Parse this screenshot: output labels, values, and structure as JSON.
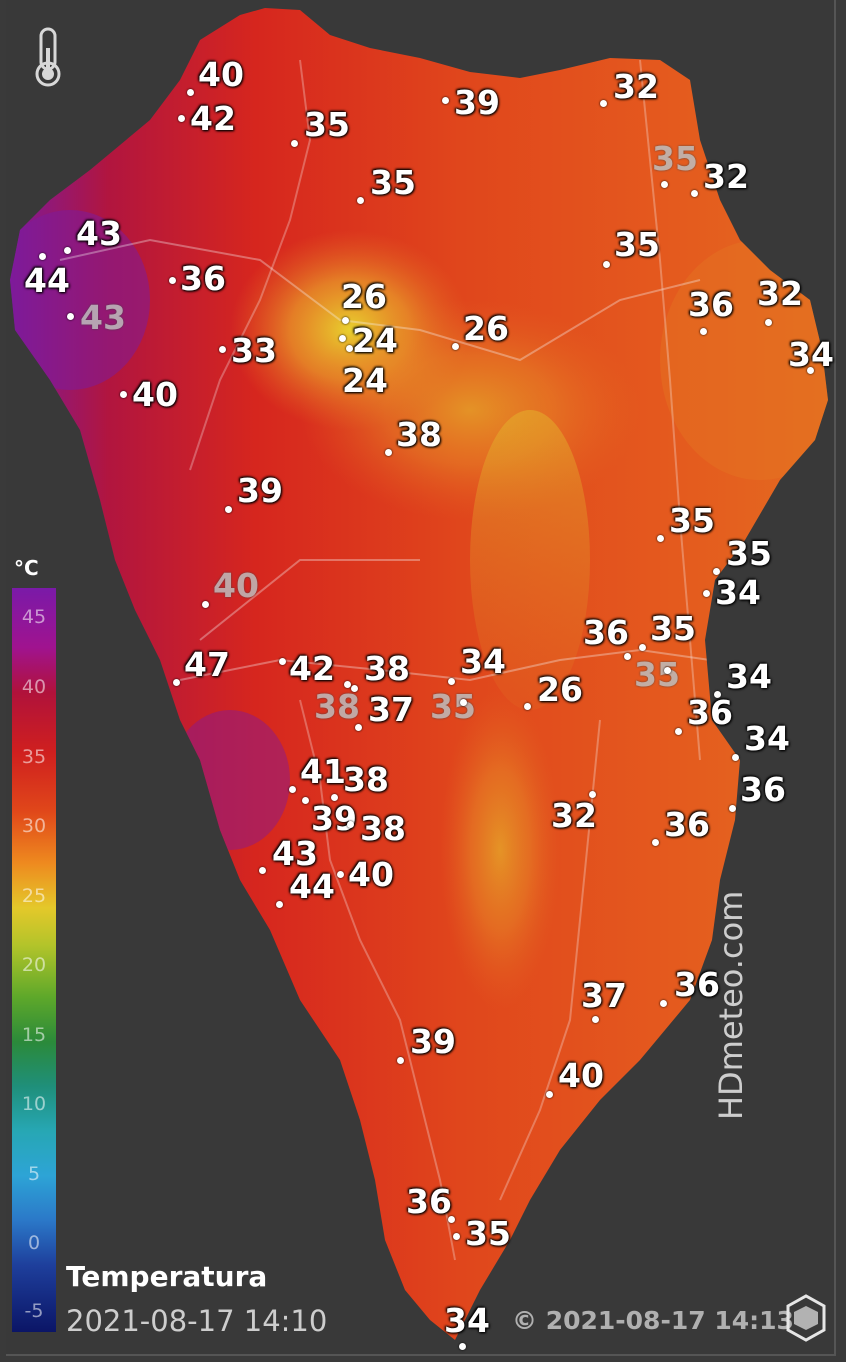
{
  "legend": {
    "unit": "°C",
    "ticks": [
      "45",
      "40",
      "35",
      "30",
      "25",
      "20",
      "15",
      "10",
      "5",
      "0",
      "-5"
    ]
  },
  "title": "Temperatura",
  "data_timestamp": "2021-08-17 14:10",
  "copyright": "© 2021-08-17 14:13",
  "brand": "HDmeteo.com",
  "colors": {
    "background": "#393939",
    "hot": "#7a1aa8",
    "warm": "#d32f1e",
    "mild": "#e2c22c"
  },
  "stations": [
    {
      "value": "40",
      "faded": false
    },
    {
      "value": "42",
      "faded": false
    },
    {
      "value": "39",
      "faded": false
    },
    {
      "value": "32",
      "faded": false
    },
    {
      "value": "35",
      "faded": false
    },
    {
      "value": "35",
      "faded": true
    },
    {
      "value": "32",
      "faded": false
    },
    {
      "value": "35",
      "faded": false
    },
    {
      "value": "43",
      "faded": false
    },
    {
      "value": "44",
      "faded": false
    },
    {
      "value": "43",
      "faded": true
    },
    {
      "value": "36",
      "faded": false
    },
    {
      "value": "35",
      "faded": false
    },
    {
      "value": "26",
      "faded": false
    },
    {
      "value": "24",
      "faded": false
    },
    {
      "value": "24",
      "faded": false
    },
    {
      "value": "26",
      "faded": false
    },
    {
      "value": "36",
      "faded": false
    },
    {
      "value": "32",
      "faded": false
    },
    {
      "value": "34",
      "faded": false
    },
    {
      "value": "33",
      "faded": false
    },
    {
      "value": "40",
      "faded": false
    },
    {
      "value": "38",
      "faded": false
    },
    {
      "value": "39",
      "faded": false
    },
    {
      "value": "35",
      "faded": false
    },
    {
      "value": "35",
      "faded": false
    },
    {
      "value": "34",
      "faded": false
    },
    {
      "value": "40",
      "faded": true
    },
    {
      "value": "36",
      "faded": false
    },
    {
      "value": "35",
      "faded": false
    },
    {
      "value": "35",
      "faded": true
    },
    {
      "value": "47",
      "faded": false
    },
    {
      "value": "42",
      "faded": false
    },
    {
      "value": "38",
      "faded": false
    },
    {
      "value": "34",
      "faded": false
    },
    {
      "value": "38",
      "faded": true
    },
    {
      "value": "37",
      "faded": false
    },
    {
      "value": "35",
      "faded": true
    },
    {
      "value": "26",
      "faded": false
    },
    {
      "value": "34",
      "faded": false
    },
    {
      "value": "36",
      "faded": false
    },
    {
      "value": "34",
      "faded": false
    },
    {
      "value": "41",
      "faded": false
    },
    {
      "value": "38",
      "faded": false
    },
    {
      "value": "36",
      "faded": false
    },
    {
      "value": "39",
      "faded": false
    },
    {
      "value": "38",
      "faded": false
    },
    {
      "value": "32",
      "faded": false
    },
    {
      "value": "36",
      "faded": false
    },
    {
      "value": "43",
      "faded": false
    },
    {
      "value": "44",
      "faded": false
    },
    {
      "value": "40",
      "faded": false
    },
    {
      "value": "37",
      "faded": false
    },
    {
      "value": "36",
      "faded": false
    },
    {
      "value": "39",
      "faded": false
    },
    {
      "value": "40",
      "faded": false
    },
    {
      "value": "36",
      "faded": false
    },
    {
      "value": "35",
      "faded": false
    },
    {
      "value": "34",
      "faded": false
    }
  ]
}
